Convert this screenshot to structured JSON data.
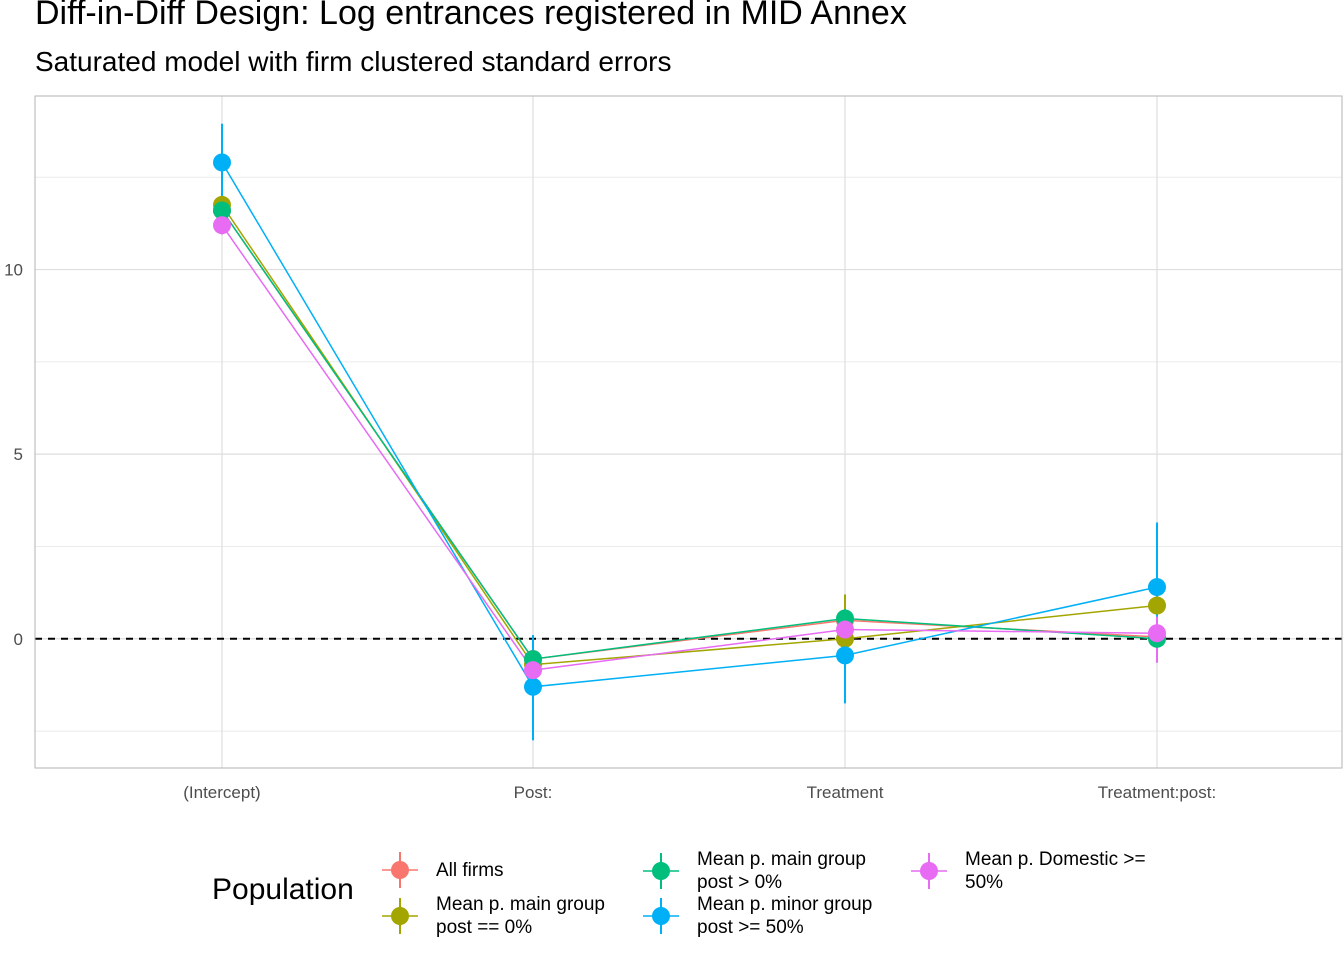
{
  "chart_data": {
    "type": "scatter",
    "title": "Diff-in-Diff Design: Log entrances registered in MID Annex",
    "subtitle": "Saturated model with firm clustered standard errors",
    "xlabel": "",
    "ylabel": "",
    "categories": [
      "(Intercept)",
      "Post:",
      "Treatment",
      "Treatment:post:"
    ],
    "ylim": [
      -3.5,
      14.7
    ],
    "yticks": [
      0,
      5,
      10
    ],
    "grid": true,
    "reference_line": 0,
    "legend_title": "Population",
    "legend_position": "bottom",
    "series": [
      {
        "name": "All firms",
        "color": "#F8766D",
        "values": [
          11.6,
          -0.55,
          0.5,
          0.05
        ],
        "lower": [
          11.3,
          -0.8,
          0.2,
          -0.3
        ],
        "upper": [
          11.9,
          -0.3,
          0.8,
          0.4
        ]
      },
      {
        "name": "Mean p. main group\npost == 0%",
        "color": "#A3A500",
        "values": [
          11.75,
          -0.7,
          0.0,
          0.9
        ],
        "lower": [
          11.45,
          -0.95,
          -0.6,
          0.7
        ],
        "upper": [
          12.05,
          -0.45,
          1.2,
          1.1
        ]
      },
      {
        "name": "Mean p. main group\npost > 0%",
        "color": "#00BF7D",
        "values": [
          11.6,
          -0.55,
          0.55,
          0.0
        ],
        "lower": [
          11.3,
          -0.8,
          0.3,
          -0.3
        ],
        "upper": [
          11.9,
          -0.3,
          0.8,
          0.3
        ]
      },
      {
        "name": "Mean p. minor group\npost >= 50%",
        "color": "#00B0F6",
        "values": [
          12.9,
          -1.3,
          -0.45,
          1.4
        ],
        "lower": [
          11.9,
          -2.75,
          -1.75,
          -0.35
        ],
        "upper": [
          13.95,
          0.1,
          0.8,
          3.15
        ]
      },
      {
        "name": "Mean p. Domestic >=\n50%",
        "color": "#E76BF3",
        "values": [
          11.2,
          -0.85,
          0.25,
          0.15
        ],
        "lower": [
          10.95,
          -1.1,
          -0.05,
          -0.65
        ],
        "upper": [
          11.45,
          -0.6,
          0.55,
          0.6
        ]
      }
    ]
  }
}
